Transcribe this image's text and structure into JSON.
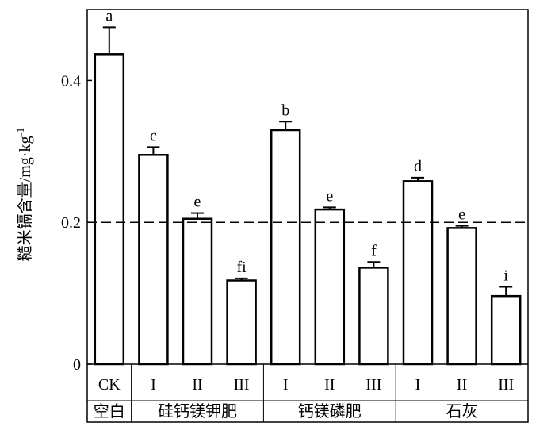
{
  "chart_data": {
    "type": "bar",
    "ylabel": "糙米镉含量/mg·kg",
    "ylabel_superscript": "-1",
    "ylim": [
      0,
      0.5
    ],
    "yticks": [
      {
        "value": 0,
        "label": "0"
      },
      {
        "value": 0.2,
        "label": "0.2"
      },
      {
        "value": 0.4,
        "label": "0.4"
      }
    ],
    "reference_line": {
      "value": 0.2,
      "style": "dashed"
    },
    "grid": false,
    "categories": [
      "CK",
      "I",
      "II",
      "III",
      "I",
      "II",
      "III",
      "I",
      "II",
      "III"
    ],
    "values": [
      0.437,
      0.295,
      0.205,
      0.118,
      0.33,
      0.218,
      0.136,
      0.258,
      0.192,
      0.096
    ],
    "errors": [
      0.038,
      0.011,
      0.008,
      0.003,
      0.012,
      0.003,
      0.008,
      0.005,
      0.003,
      0.013
    ],
    "letters": [
      "a",
      "c",
      "e",
      "fi",
      "b",
      "e",
      "f",
      "d",
      "e",
      "i"
    ],
    "groups": [
      {
        "label": "空白",
        "start": 0,
        "end": 0
      },
      {
        "label": "硅钙镁钾肥",
        "start": 1,
        "end": 3
      },
      {
        "label": "钙镁磷肥",
        "start": 4,
        "end": 6
      },
      {
        "label": "石灰",
        "start": 7,
        "end": 9
      }
    ],
    "colors": {
      "bar_fill": "#ffffff",
      "stroke": "#000000"
    }
  }
}
